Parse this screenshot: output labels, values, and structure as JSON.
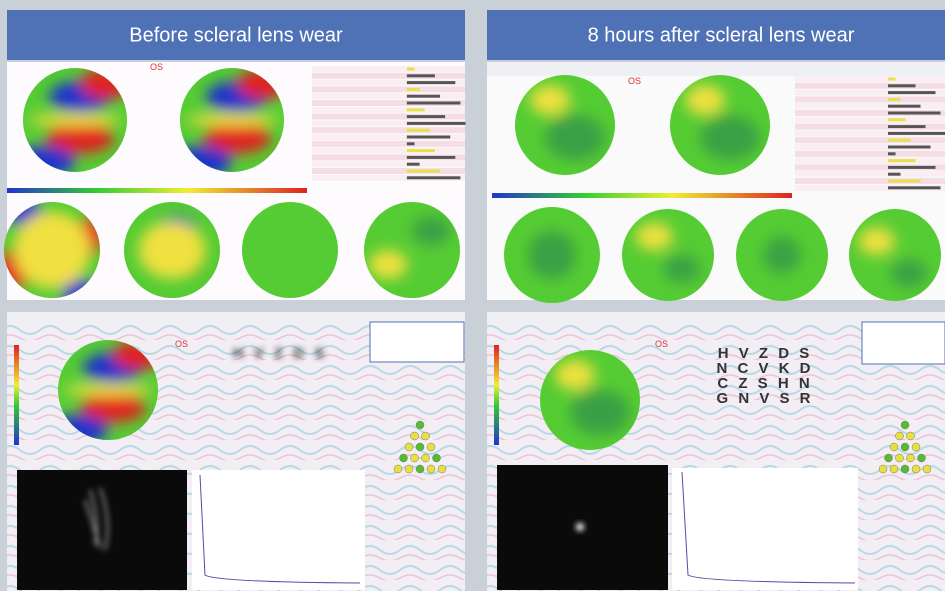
{
  "panels": [
    {
      "title": "Before scleral lens wear",
      "top_label": "OS",
      "bottom_label": "OS",
      "chart_rows": [
        "H V Z D S"
      ]
    },
    {
      "title": "8 hours after scleral lens wear",
      "top_label": "OS",
      "bottom_label": "OS",
      "chart_rows": [
        "H V Z D S",
        "N C V K D",
        "C Z S H N",
        "G N V S R"
      ]
    }
  ]
}
